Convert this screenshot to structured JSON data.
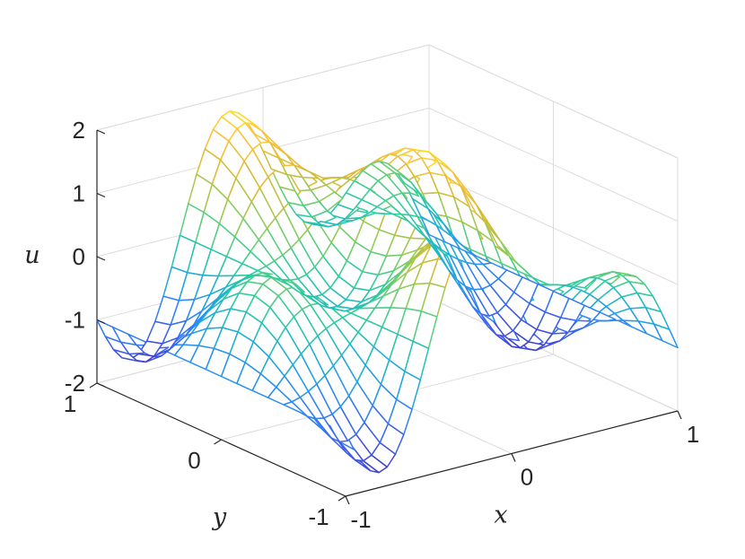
{
  "chart_data": {
    "type": "surface",
    "style": "mesh (wireframe), parula colormap",
    "function": "u(x,y) = sin(2*pi*x) * cos(pi*y) + cos(pi*x)",
    "grid": true,
    "x": {
      "label": "x",
      "range": [
        -1,
        1
      ],
      "ticks": [
        -1,
        0,
        1
      ],
      "tick_labels": [
        "-1",
        "0",
        "1"
      ],
      "samples": 41
    },
    "y": {
      "label": "y",
      "range": [
        -1,
        1
      ],
      "ticks": [
        -1,
        0,
        1
      ],
      "tick_labels": [
        "-1",
        "0",
        "1"
      ],
      "samples": 17
    },
    "z": {
      "label": "u",
      "range": [
        -2,
        2
      ],
      "ticks": [
        -2,
        -1,
        0,
        1,
        2
      ],
      "tick_labels": [
        "-2",
        "-1",
        "0",
        "1",
        "2"
      ]
    },
    "colormap": [
      "#3e26a8",
      "#4256e8",
      "#2e87f7",
      "#1bb1d4",
      "#2fcd9d",
      "#8dcd59",
      "#d8ba32",
      "#fec23a",
      "#f9fb15"
    ]
  }
}
